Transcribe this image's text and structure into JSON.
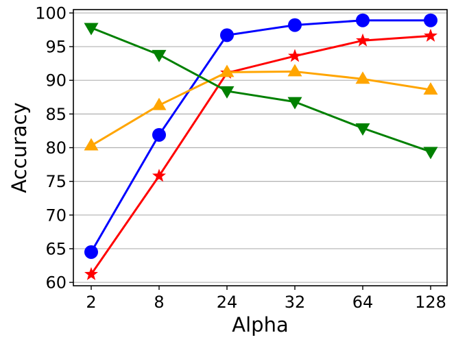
{
  "chart_data": {
    "type": "line",
    "title": "",
    "xlabel": "Alpha",
    "ylabel": "Accuracy",
    "categories": [
      "2",
      "8",
      "24",
      "32",
      "64",
      "128"
    ],
    "ylim": [
      59.5,
      100.5
    ],
    "yticks": [
      60,
      65,
      70,
      75,
      80,
      85,
      90,
      95,
      100
    ],
    "grid": "horizontal",
    "legend": "none",
    "series": [
      {
        "color": "#0000ff",
        "marker": "circle",
        "values": [
          64.5,
          81.9,
          96.7,
          98.2,
          98.9,
          98.9
        ]
      },
      {
        "color": "#ff0000",
        "marker": "star",
        "values": [
          61.2,
          75.8,
          91.1,
          93.6,
          95.9,
          96.6
        ]
      },
      {
        "color": "#ffa500",
        "marker": "triangle-up",
        "values": [
          80.3,
          86.3,
          91.2,
          91.3,
          90.2,
          88.6
        ]
      },
      {
        "color": "#008000",
        "marker": "triangle-down",
        "values": [
          97.8,
          93.8,
          88.4,
          86.8,
          82.9,
          79.4
        ]
      }
    ]
  }
}
